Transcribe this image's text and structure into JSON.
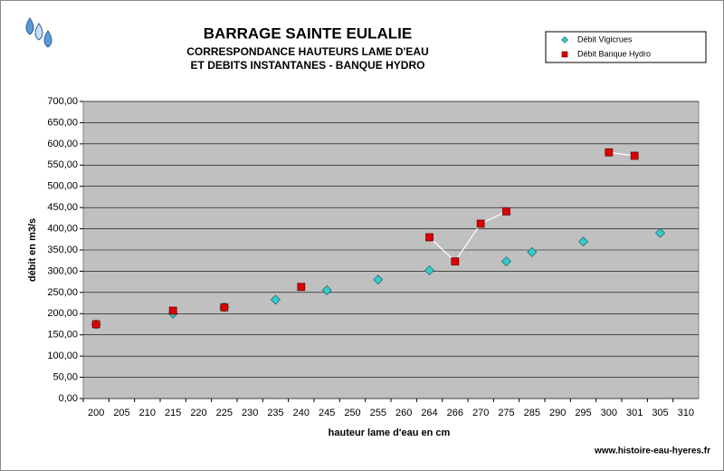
{
  "chart_data": {
    "type": "scatter",
    "title": "BARRAGE SAINTE EULALIE",
    "subtitle": [
      "CORRESPONDANCE HAUTEURS LAME D'EAU",
      "ET DEBITS INSTANTANES - BANQUE HYDRO"
    ],
    "x_label": "hauteur lame d'eau en cm",
    "y_label": "débit en m3/s",
    "footer": "www.histoire-eau-hyeres.fr",
    "categories": [
      "200",
      "205",
      "210",
      "215",
      "220",
      "225",
      "230",
      "235",
      "240",
      "245",
      "250",
      "255",
      "260",
      "264",
      "266",
      "270",
      "275",
      "285",
      "290",
      "295",
      "300",
      "301",
      "305",
      "310"
    ],
    "series": [
      {
        "name": "Débit Vigicrues",
        "color": "#33cccc",
        "marker": "diamond",
        "values": [
          175,
          null,
          null,
          200,
          null,
          215,
          null,
          233,
          null,
          255,
          null,
          280,
          null,
          302,
          null,
          null,
          323,
          345,
          null,
          370,
          null,
          null,
          390,
          null
        ]
      },
      {
        "name": "Débit Banque Hydro",
        "color": "#e00000",
        "marker": "square",
        "line_color": "#ffffff",
        "values": [
          175,
          null,
          null,
          207,
          null,
          215,
          null,
          null,
          263,
          null,
          null,
          null,
          null,
          380,
          323,
          412,
          441,
          null,
          null,
          null,
          580,
          572,
          null,
          null
        ]
      }
    ],
    "ylim": [
      0,
      700
    ],
    "yticks": [
      {
        "value": 0,
        "label": "0,00"
      },
      {
        "value": 50,
        "label": "50,00"
      },
      {
        "value": 100,
        "label": "100,00"
      },
      {
        "value": 150,
        "label": "150,00"
      },
      {
        "value": 200,
        "label": "200,00"
      },
      {
        "value": 250,
        "label": "250,00"
      },
      {
        "value": 300,
        "label": "300,00"
      },
      {
        "value": 350,
        "label": "350,00"
      },
      {
        "value": 400,
        "label": "400,00"
      },
      {
        "value": 450,
        "label": "450,00"
      },
      {
        "value": 500,
        "label": "500,00"
      },
      {
        "value": 550,
        "label": "550,00"
      },
      {
        "value": 600,
        "label": "600,00"
      },
      {
        "value": 650,
        "label": "650,00"
      },
      {
        "value": 700,
        "label": "700,00"
      }
    ],
    "grid": true,
    "plot_background": "#c0c0c0",
    "legend": "top-right"
  }
}
